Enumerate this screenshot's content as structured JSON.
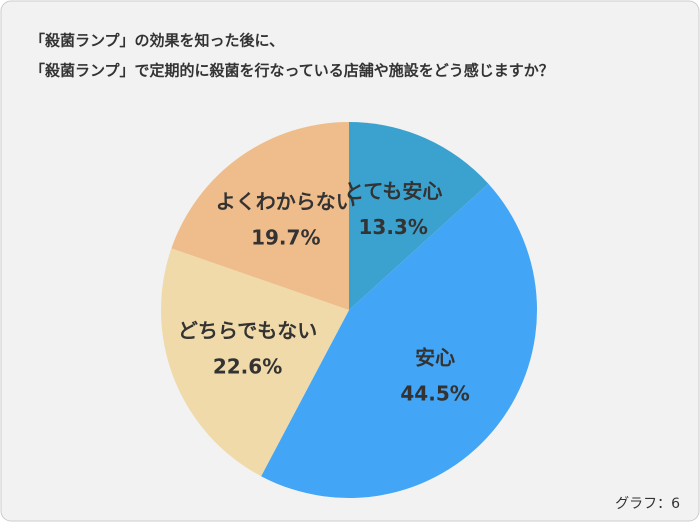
{
  "chart_data": {
    "type": "pie",
    "title": [
      "「殺菌ランプ」の効果を知った後に、",
      "「殺菌ランプ」で定期的に殺菌を行なっている店舗や施設をどう感じますか？"
    ],
    "categories": [
      "とても安心",
      "安心",
      "どちらでもない",
      "よくわからない"
    ],
    "values": [
      13.3,
      44.5,
      22.6,
      19.7
    ],
    "value_labels": [
      "13.3%",
      "44.5%",
      "22.6%",
      "19.7%"
    ],
    "colors": [
      "#3ba2cf",
      "#42a5f5",
      "#f0daa9",
      "#efbc8b"
    ],
    "annotation": "グラフ：6"
  }
}
